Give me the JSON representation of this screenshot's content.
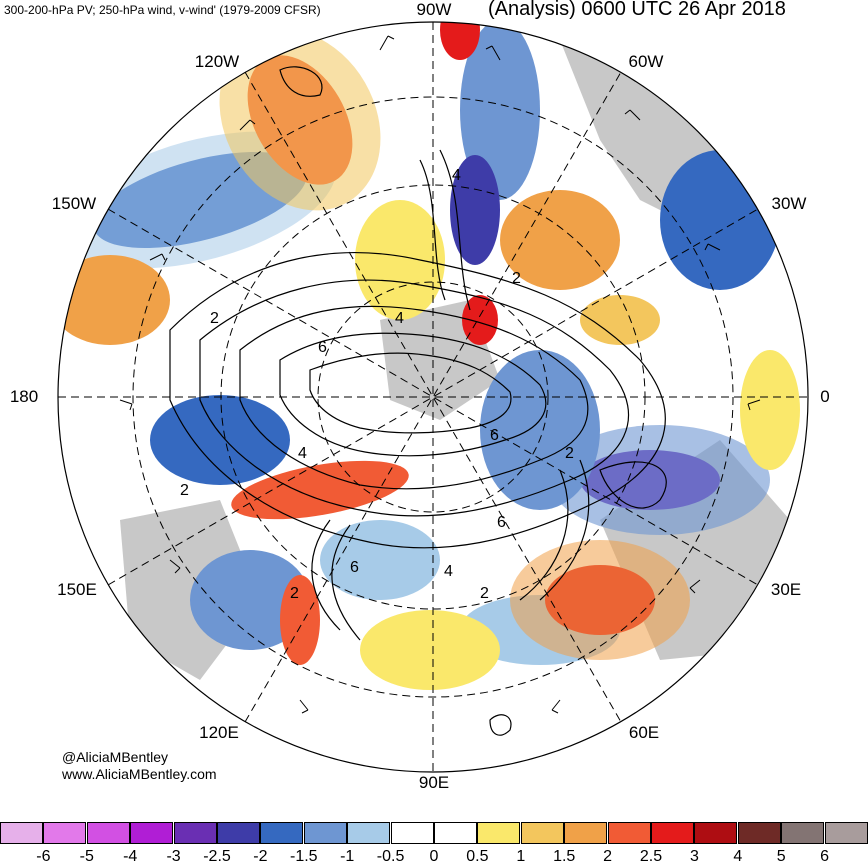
{
  "header": {
    "left_title": "300-200-hPa PV; 250-hPa wind, v-wind' (1979-2009 CFSR)",
    "right_title": "(Analysis) 0600 UTC 26 Apr 2018"
  },
  "map": {
    "projection": "north-polar-stereographic",
    "longitude_labels": [
      "90W",
      "60W",
      "30W",
      "0",
      "30E",
      "60E",
      "90E",
      "120E",
      "150E",
      "180",
      "150W",
      "120W"
    ],
    "contour_labels": [
      "4",
      "2",
      "4",
      "6",
      "2",
      "2",
      "4",
      "6",
      "2",
      "6",
      "4",
      "2",
      "6",
      "2"
    ]
  },
  "credits": {
    "handle": "@AliciaMBentley",
    "website": "www.AliciaMBentley.com"
  },
  "colorbar": {
    "colors": [
      "#e6b0ea",
      "#e279ea",
      "#d250e3",
      "#b01ed5",
      "#6a2fb3",
      "#3e3ca8",
      "#3569c0",
      "#6e96d2",
      "#a7cbe8",
      "#ffffff",
      "#ffffff",
      "#fae86b",
      "#f3c65d",
      "#f0a148",
      "#f15b35",
      "#e41b1b",
      "#ae0d12",
      "#6e2a26",
      "#837473",
      "#a89c9c"
    ],
    "labels": [
      "-6",
      "-5",
      "-4",
      "-3",
      "-2.5",
      "-2",
      "-1.5",
      "-1",
      "-0.5",
      "0",
      "0.5",
      "1",
      "1.5",
      "2",
      "2.5",
      "3",
      "4",
      "5",
      "6"
    ]
  }
}
